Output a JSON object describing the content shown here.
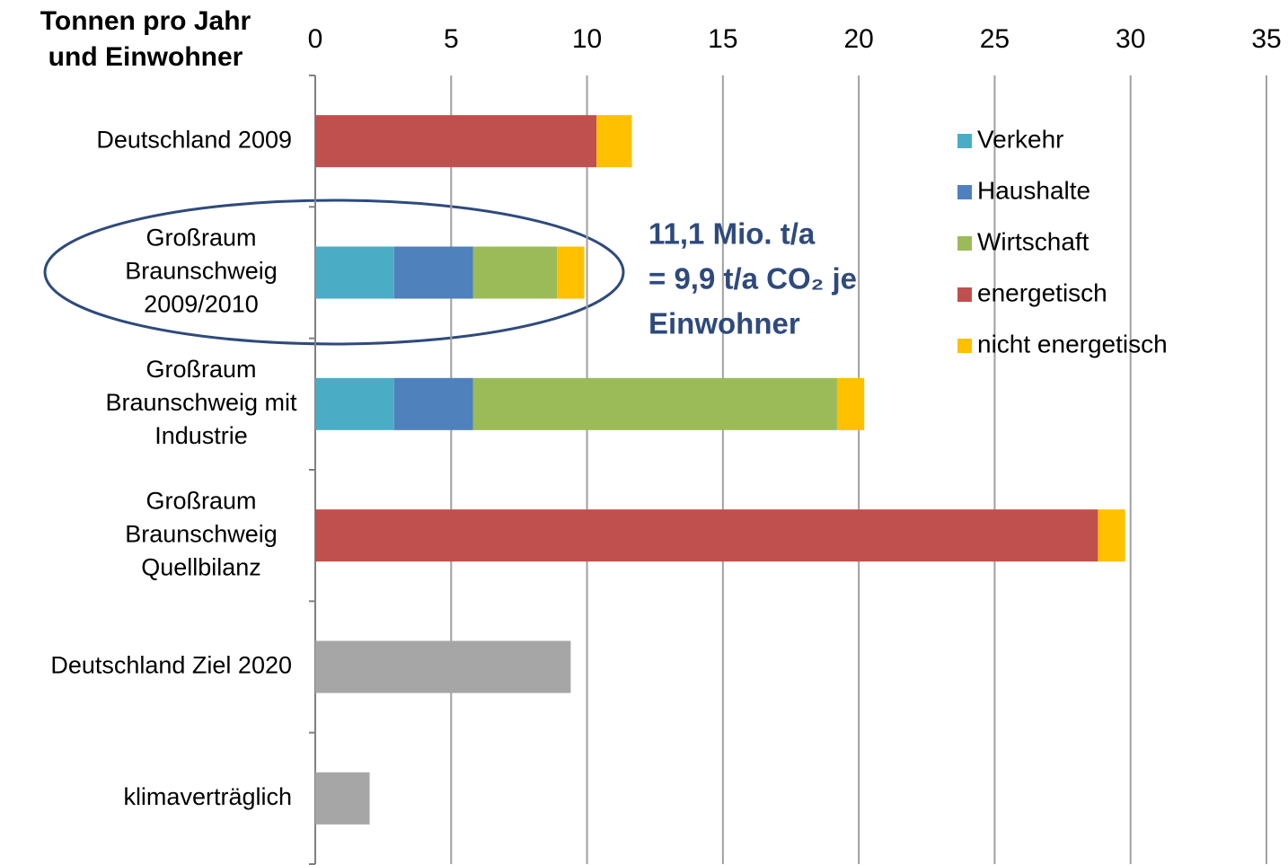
{
  "chart_data": {
    "type": "stacked-bar-horizontal",
    "axis_title": [
      "Tonnen pro Jahr",
      "und Einwohner"
    ],
    "categories": [
      [
        "Deutschland 2009"
      ],
      [
        "Großraum",
        "Braunschweig",
        "2009/2010"
      ],
      [
        "Großraum",
        "Braunschweig mit",
        "Industrie"
      ],
      [
        "Großraum",
        "Braunschweig",
        "Quellbilanz"
      ],
      [
        "Deutschland Ziel 2020"
      ],
      [
        "klimaverträglich"
      ]
    ],
    "series": [
      {
        "name": "Verkehr",
        "color": "#4bacc6",
        "values": [
          null,
          2.9,
          2.9,
          null,
          null,
          null
        ]
      },
      {
        "name": "Haushalte",
        "color": "#4f81bd",
        "values": [
          null,
          2.9,
          2.9,
          null,
          null,
          null
        ]
      },
      {
        "name": "Wirtschaft",
        "color": "#9bbb59",
        "values": [
          null,
          3.1,
          13.4,
          null,
          null,
          null
        ]
      },
      {
        "name": "energetisch",
        "color": "#c0504d",
        "values": [
          10.35,
          null,
          null,
          28.8,
          null,
          null
        ]
      },
      {
        "name": "nicht energetisch",
        "color": "#ffc000",
        "values": [
          1.3,
          1.0,
          1.0,
          1.0,
          null,
          null
        ]
      },
      {
        "color": "#a6a6a6",
        "values": [
          null,
          null,
          null,
          null,
          9.4,
          2.0
        ]
      }
    ],
    "xlim": [
      0,
      35
    ],
    "xticks": [
      0,
      5,
      10,
      15,
      20,
      25,
      30,
      35
    ],
    "grid": true,
    "legend": "right",
    "annotation": [
      "11,1 Mio. t/a",
      "= 9,9 t/a CO₂ je",
      "Einwohner"
    ]
  }
}
